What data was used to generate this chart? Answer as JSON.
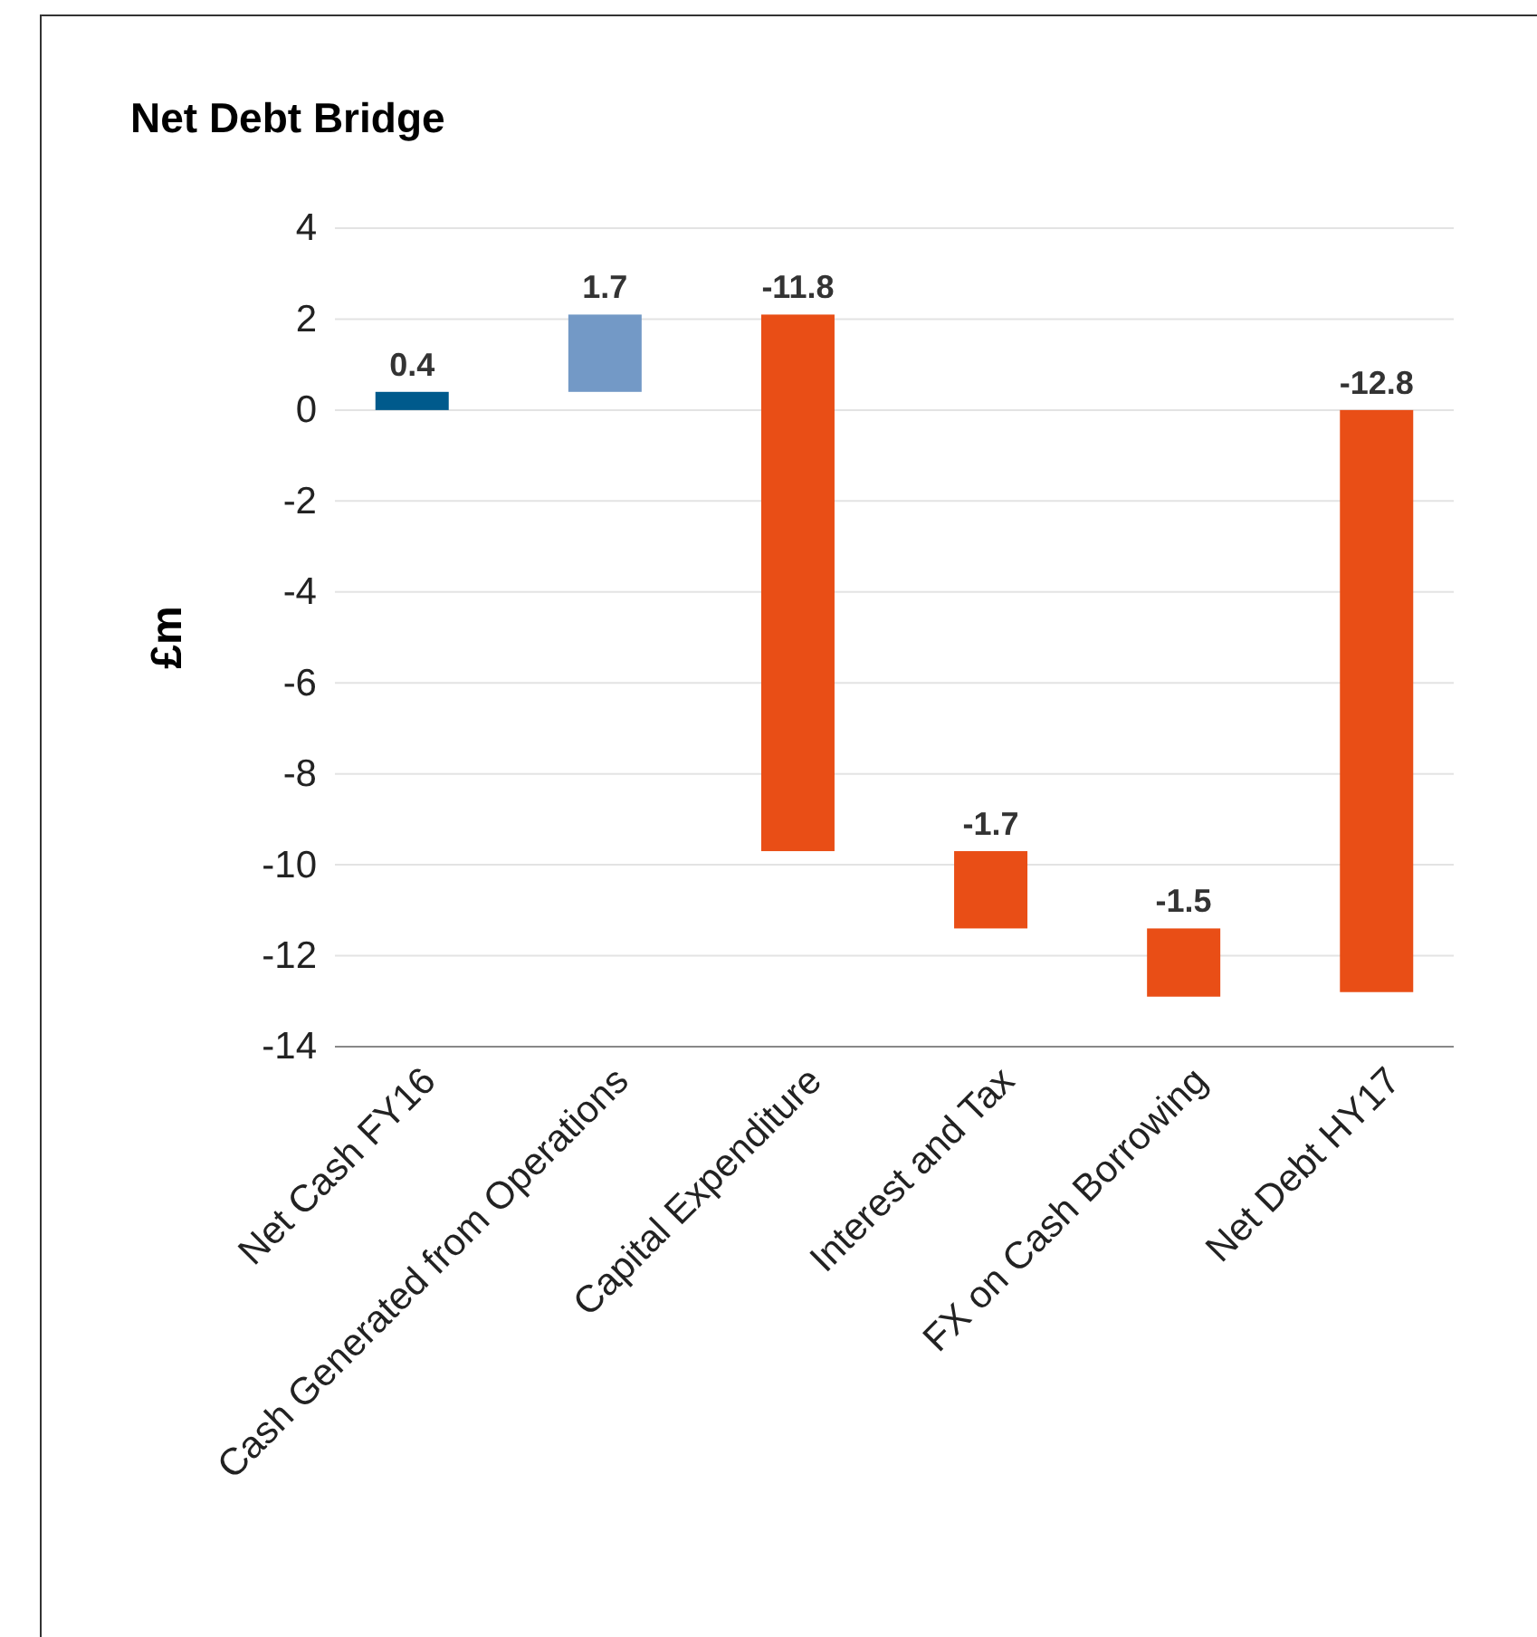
{
  "chart_data": {
    "type": "bar",
    "title": "Net Debt Bridge",
    "ylabel": "£m",
    "categories": [
      "Net Cash FY16",
      "Cash Generated from Operations",
      "Capital Expenditure",
      "Interest and Tax",
      "FX on Cash Borrowing",
      "Net Debt HY17"
    ],
    "values": [
      0.4,
      1.7,
      -11.8,
      -1.7,
      -1.5,
      -12.8
    ],
    "base": [
      0,
      0.4,
      2.1,
      -9.7,
      -11.4,
      0
    ],
    "colors": [
      "#005a8c",
      "#7399c6",
      "#e94e16",
      "#e94e16",
      "#e94e16",
      "#e94e16"
    ],
    "ylim": [
      -14,
      4
    ],
    "yticks": [
      -14,
      -12,
      -10,
      -8,
      -6,
      -4,
      -2,
      0,
      2,
      4
    ],
    "grid": "y",
    "data_labels": true
  }
}
